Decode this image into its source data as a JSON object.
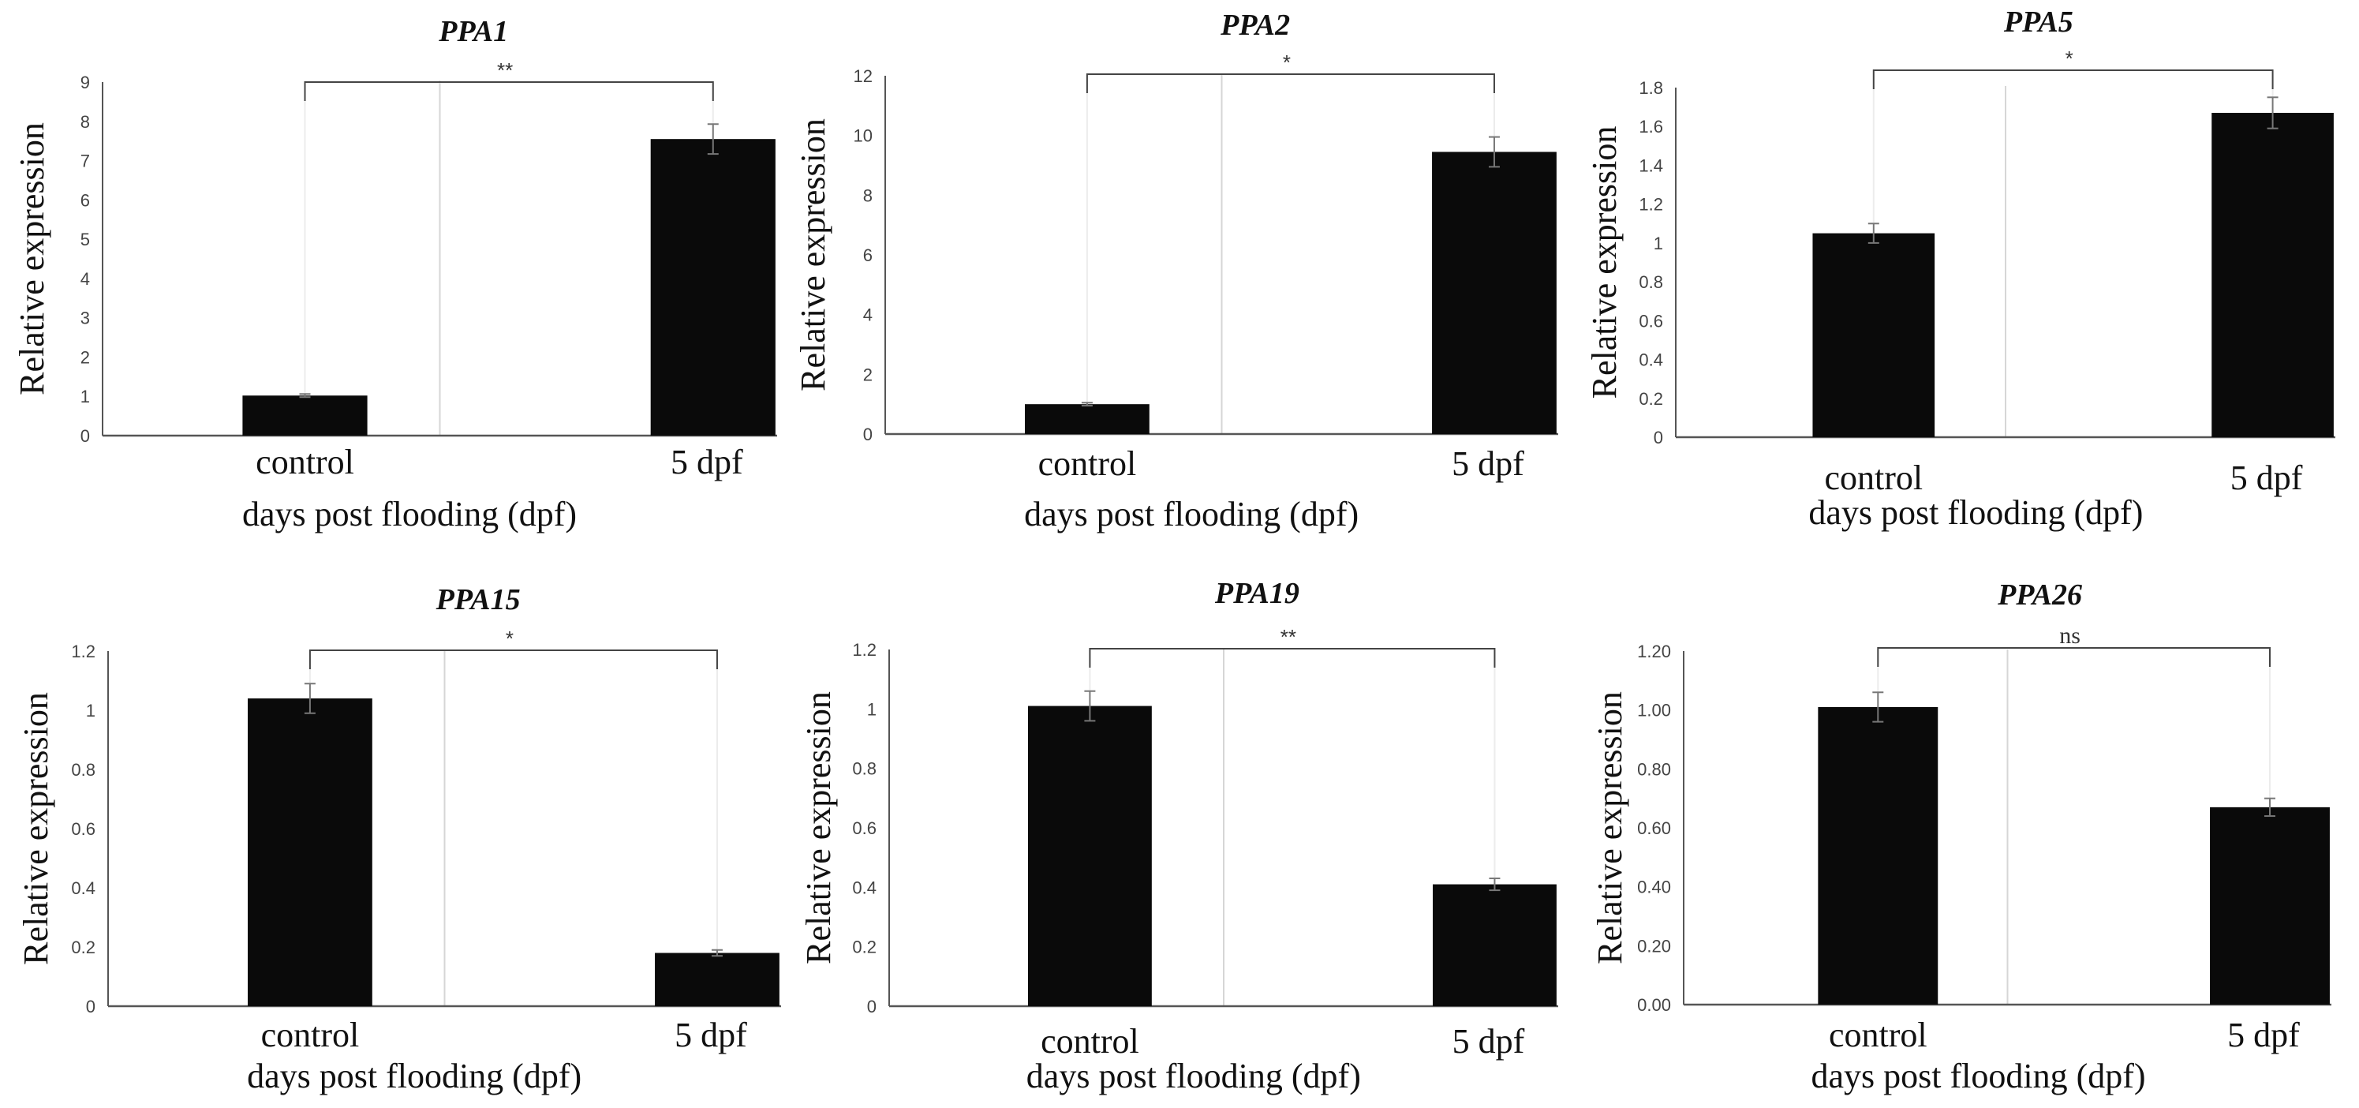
{
  "figure_title": "",
  "chart_data": [
    {
      "type": "bar",
      "title": "PPA1",
      "xlabel": "days post flooding (dpf)",
      "ylabel": "Relative expression",
      "categories": [
        "control",
        "5 dpf"
      ],
      "values": [
        1.02,
        7.55
      ],
      "errors": [
        0.04,
        0.38
      ],
      "ylim": [
        0,
        9
      ],
      "yticks": [
        "0",
        "1",
        "2",
        "3",
        "4",
        "5",
        "6",
        "7",
        "8",
        "9"
      ],
      "ytick_values": [
        0,
        1,
        2,
        3,
        4,
        5,
        6,
        7,
        8,
        9
      ],
      "significance": "**"
    },
    {
      "type": "bar",
      "title": "PPA2",
      "xlabel": "days post flooding (dpf)",
      "ylabel": "Relative expression",
      "categories": [
        "control",
        "5 dpf"
      ],
      "values": [
        1.0,
        9.45
      ],
      "errors": [
        0.05,
        0.5
      ],
      "ylim": [
        0,
        12
      ],
      "yticks": [
        "0",
        "2",
        "4",
        "6",
        "8",
        "10",
        "12"
      ],
      "ytick_values": [
        0,
        2,
        4,
        6,
        8,
        10,
        12
      ],
      "significance": "*"
    },
    {
      "type": "bar",
      "title": "PPA5",
      "xlabel": "days post flooding (dpf)",
      "ylabel": "Relative expression",
      "categories": [
        "control",
        "5 dpf"
      ],
      "values": [
        1.05,
        1.67
      ],
      "errors": [
        0.05,
        0.08
      ],
      "ylim": [
        0,
        1.8
      ],
      "yticks": [
        "0",
        "0.2",
        "0.4",
        "0.6",
        "0.8",
        "1",
        "1.2",
        "1.4",
        "1.6",
        "1.8"
      ],
      "ytick_values": [
        0,
        0.2,
        0.4,
        0.6,
        0.8,
        1,
        1.2,
        1.4,
        1.6,
        1.8
      ],
      "significance": "*"
    },
    {
      "type": "bar",
      "title": "PPA15",
      "xlabel": "days post flooding (dpf)",
      "ylabel": "Relative expression",
      "categories": [
        "control",
        "5 dpf"
      ],
      "values": [
        1.04,
        0.18
      ],
      "errors": [
        0.05,
        0.01
      ],
      "ylim": [
        0,
        1.2
      ],
      "yticks": [
        "0",
        "0.2",
        "0.4",
        "0.6",
        "0.8",
        "1",
        "1.2"
      ],
      "ytick_values": [
        0,
        0.2,
        0.4,
        0.6,
        0.8,
        1,
        1.2
      ],
      "significance": "*"
    },
    {
      "type": "bar",
      "title": "PPA19",
      "xlabel": "days post flooding (dpf)",
      "ylabel": "Relative expression",
      "categories": [
        "control",
        "5 dpf"
      ],
      "values": [
        1.01,
        0.41
      ],
      "errors": [
        0.05,
        0.02
      ],
      "ylim": [
        0,
        1.2
      ],
      "yticks": [
        "0",
        "0.2",
        "0.4",
        "0.6",
        "0.8",
        "1",
        "1.2"
      ],
      "ytick_values": [
        0,
        0.2,
        0.4,
        0.6,
        0.8,
        1,
        1.2
      ],
      "significance": "**"
    },
    {
      "type": "bar",
      "title": "PPA26",
      "xlabel": "days post flooding (dpf)",
      "ylabel": "Relative expression",
      "categories": [
        "control",
        "5 dpf"
      ],
      "values": [
        1.01,
        0.67
      ],
      "errors": [
        0.05,
        0.03
      ],
      "ylim": [
        0,
        1.2
      ],
      "yticks": [
        "0.00",
        "0.20",
        "0.40",
        "0.60",
        "0.80",
        "1.00",
        "1.20"
      ],
      "ytick_values": [
        0,
        0.2,
        0.4,
        0.6,
        0.8,
        1.0,
        1.2
      ],
      "significance": "ns"
    }
  ],
  "colors": {
    "bar": "#0a0a0a",
    "axis": "#555555",
    "divider": "#d6d6d6",
    "errorbar": "#777777",
    "bracket": "#444444"
  }
}
